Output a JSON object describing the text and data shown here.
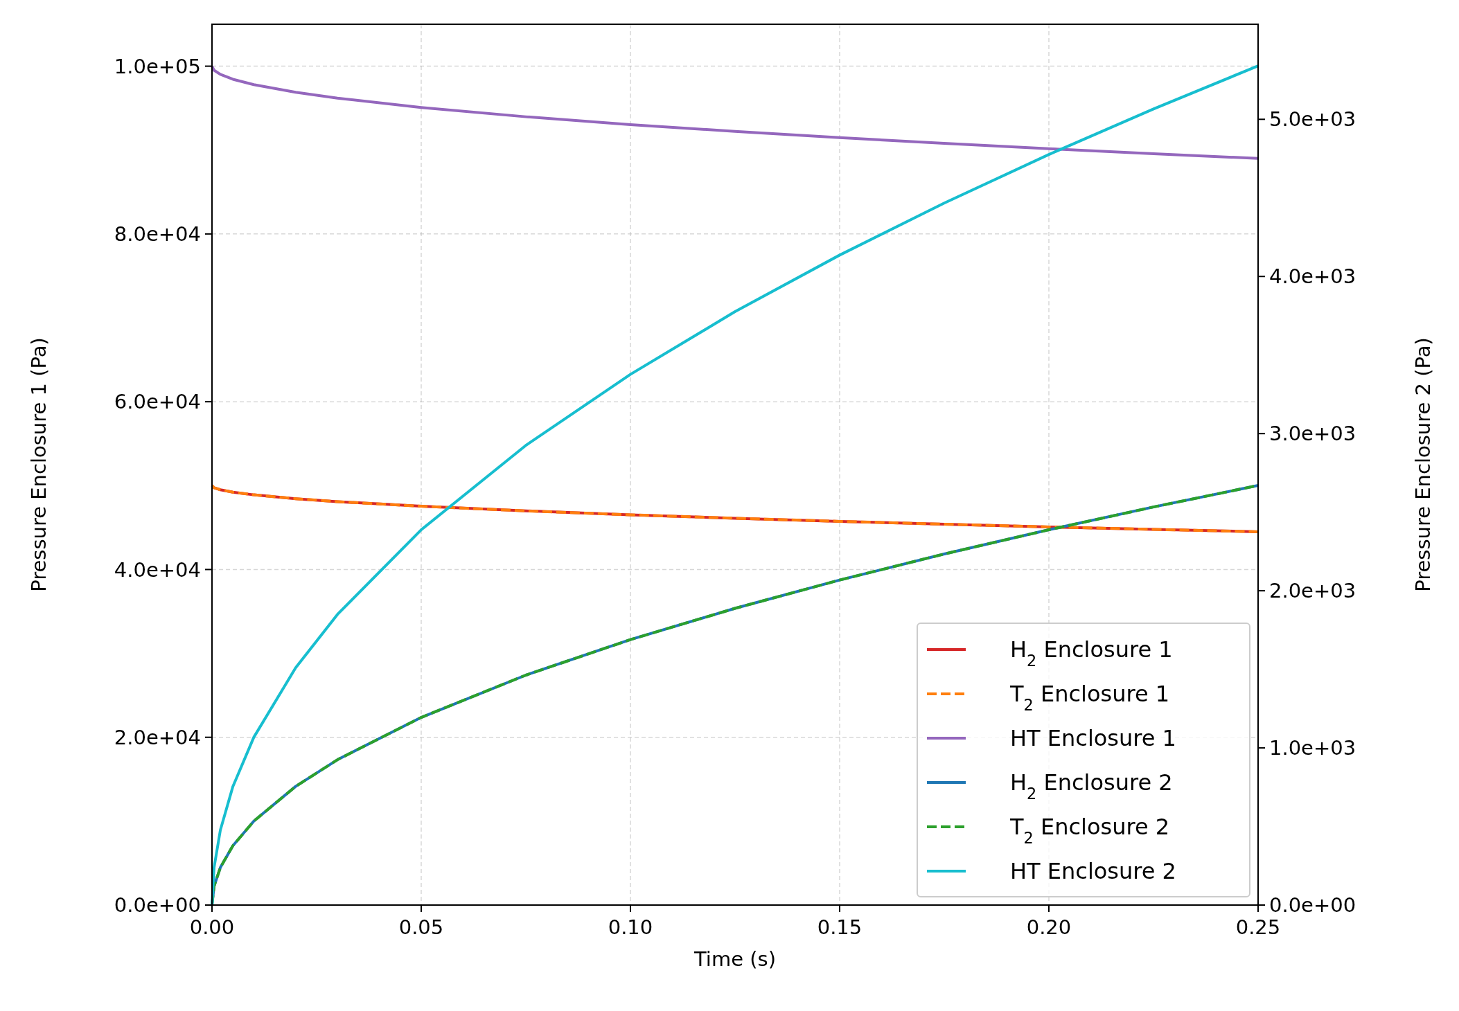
{
  "chart_data": {
    "type": "line",
    "xlabel": "Time (s)",
    "ylabel": "Pressure Enclosure 1 (Pa)",
    "y2label": "Pressure Enclosure 2 (Pa)",
    "x": [
      0,
      0.0005,
      0.002,
      0.005,
      0.01,
      0.02,
      0.03,
      0.05,
      0.075,
      0.1,
      0.125,
      0.15,
      0.175,
      0.2,
      0.225,
      0.25
    ],
    "xlim": [
      0,
      0.25
    ],
    "xticks": [
      {
        "value": 0,
        "label": "0.00"
      },
      0.05,
      {
        "value": 0.1,
        "label": "0.10"
      },
      0.15,
      {
        "value": 0.2,
        "label": "0.20"
      },
      0.25
    ],
    "ylim": [
      0,
      105000
    ],
    "yticks": [
      {
        "value": 0,
        "label": "0.0e+00"
      },
      {
        "value": 20000,
        "label": "2.0e+04"
      },
      {
        "value": 40000,
        "label": "4.0e+04"
      },
      {
        "value": 60000,
        "label": "6.0e+04"
      },
      {
        "value": 80000,
        "label": "8.0e+04"
      },
      {
        "value": 100000,
        "label": "1.0e+05"
      }
    ],
    "y2lim": [
      0,
      5605
    ],
    "y2ticks": [
      {
        "value": 0,
        "label": "0.0e+00"
      },
      {
        "value": 1000,
        "label": "1.0e+03"
      },
      {
        "value": 2000,
        "label": "2.0e+03"
      },
      {
        "value": 3000,
        "label": "3.0e+03"
      },
      {
        "value": 4000,
        "label": "4.0e+03"
      },
      {
        "value": 5000,
        "label": "5.0e+03"
      }
    ],
    "grid": true,
    "legend": "bottom right",
    "series": [
      {
        "name": "H$_{2}$ Enclosure 1",
        "color": "#d62728",
        "line_style": "solid",
        "values": [
          50000,
          49750,
          49510,
          49220,
          48900,
          48440,
          48090,
          47540,
          46990,
          46520,
          46110,
          45740,
          45400,
          45080,
          44780,
          44500
        ]
      },
      {
        "name": "T$_{2}$ Enclosure 1",
        "color": "#ff7f0e",
        "line_style": "dashed",
        "values": [
          50000,
          49750,
          49510,
          49220,
          48900,
          48440,
          48090,
          47540,
          46990,
          46520,
          46110,
          45740,
          45400,
          45080,
          44780,
          44500
        ]
      },
      {
        "name": "HT Enclosure 1",
        "color": "#9467bd",
        "line_style": "solid",
        "values": [
          100000,
          99510,
          99020,
          98440,
          97800,
          96890,
          96190,
          95080,
          93970,
          93040,
          92220,
          91480,
          90800,
          90160,
          89570,
          89000
        ]
      },
      {
        "name": "H$_{2}$ Enclosure 2",
        "color": "#1f77b4",
        "line_style": "solid",
        "axis": "y2",
        "values": [
          0,
          120,
          239,
          378,
          534,
          755,
          925,
          1194,
          1463,
          1689,
          1888,
          2068,
          2234,
          2388,
          2533,
          2670
        ]
      },
      {
        "name": "T$_{2}$ Enclosure 2",
        "color": "#2ca02c",
        "line_style": "dashed",
        "axis": "y2",
        "values": [
          0,
          120,
          239,
          378,
          534,
          755,
          925,
          1194,
          1463,
          1689,
          1888,
          2068,
          2234,
          2388,
          2533,
          2670
        ]
      },
      {
        "name": "HT Enclosure 2",
        "color": "#17becf",
        "line_style": "solid",
        "axis": "y2",
        "values": [
          0,
          239,
          477,
          755,
          1068,
          1510,
          1850,
          2388,
          2925,
          3377,
          3776,
          4136,
          4467,
          4776,
          5066,
          5340
        ]
      }
    ]
  }
}
